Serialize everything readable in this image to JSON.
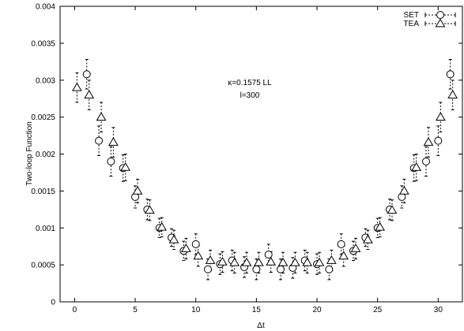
{
  "chart_data": {
    "type": "scatter",
    "xlabel": "Δt",
    "ylabel": "Two-loop Function",
    "xlim": [
      -1.2,
      32
    ],
    "ylim": [
      0,
      0.004
    ],
    "xticks": [
      "0",
      "5",
      "10",
      "15",
      "20",
      "25",
      "30"
    ],
    "yticks": [
      "0",
      "0.0005",
      "0.001",
      "0.0015",
      "0.002",
      "0.0025",
      "0.003",
      "0.0035",
      "0.004"
    ],
    "annotations": [
      "κ=0.1575 LL",
      "l=300"
    ],
    "legend_position": "top-right",
    "series": [
      {
        "name": "SET",
        "marker": "circle",
        "x": [
          1,
          2,
          3,
          4,
          5,
          6,
          7,
          8,
          9,
          10,
          11,
          12,
          13,
          14,
          15,
          16,
          17,
          18,
          19,
          20,
          21,
          22,
          23,
          24,
          25,
          26,
          27,
          28,
          29,
          30,
          31
        ],
        "y": [
          0.00308,
          0.00218,
          0.0019,
          0.00181,
          0.00142,
          0.00125,
          0.001,
          0.00087,
          0.00069,
          0.00078,
          0.00044,
          0.00051,
          0.00056,
          0.00047,
          0.00044,
          0.00064,
          0.00044,
          0.00046,
          0.00056,
          0.00051,
          0.00044,
          0.00078,
          0.00069,
          0.00087,
          0.001,
          0.00125,
          0.00142,
          0.00181,
          0.0019,
          0.00218,
          0.00308
        ],
        "err": [
          0.0002,
          0.0002,
          0.0002,
          0.00018,
          0.00015,
          0.00014,
          0.00013,
          0.00012,
          0.00013,
          0.00014,
          0.00014,
          0.00014,
          0.00014,
          0.00014,
          0.00014,
          0.00014,
          0.00014,
          0.00014,
          0.00014,
          0.00014,
          0.00014,
          0.00014,
          0.00013,
          0.00012,
          0.00013,
          0.00014,
          0.00015,
          0.00018,
          0.0002,
          0.0002,
          0.0002
        ]
      },
      {
        "name": "TEA",
        "marker": "triangle",
        "x": [
          0,
          1,
          2,
          3,
          4,
          5,
          6,
          7,
          8,
          9,
          10,
          11,
          12,
          13,
          14,
          15,
          16,
          17,
          18,
          19,
          20,
          21,
          22,
          23,
          24,
          25,
          26,
          27,
          28,
          29,
          30,
          31
        ],
        "y": [
          0.0029,
          0.0028,
          0.0025,
          0.00216,
          0.00182,
          0.0015,
          0.00124,
          0.00101,
          0.00084,
          0.00072,
          0.00062,
          0.00056,
          0.00054,
          0.00053,
          0.00053,
          0.00053,
          0.00054,
          0.00053,
          0.00053,
          0.00053,
          0.00053,
          0.00056,
          0.00062,
          0.00072,
          0.00084,
          0.00101,
          0.00124,
          0.0015,
          0.00182,
          0.00216,
          0.0025,
          0.0028
        ],
        "err": [
          0.0002,
          0.0002,
          0.0002,
          0.0002,
          0.00018,
          0.00016,
          0.00014,
          0.00013,
          0.00013,
          0.00014,
          0.00014,
          0.00014,
          0.00014,
          0.00014,
          0.00014,
          0.00014,
          0.00014,
          0.00014,
          0.00014,
          0.00014,
          0.00014,
          0.00014,
          0.00014,
          0.00014,
          0.00013,
          0.00013,
          0.00014,
          0.00016,
          0.00018,
          0.0002,
          0.0002,
          0.0002
        ]
      }
    ]
  }
}
